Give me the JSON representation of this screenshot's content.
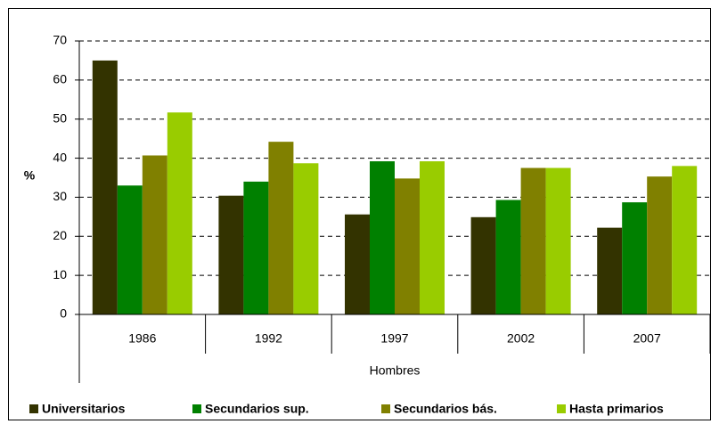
{
  "chart_data": {
    "type": "bar",
    "categories": [
      "1986",
      "1992",
      "1997",
      "2002",
      "2007"
    ],
    "x_label": "Hombres",
    "y_label": "%",
    "series": [
      {
        "name": "Universitarios",
        "color": "#333300",
        "values": [
          65,
          30.4,
          25.6,
          24.9,
          22.2
        ]
      },
      {
        "name": "Secundarios sup.",
        "color": "#008000",
        "values": [
          33,
          34,
          39.2,
          29.3,
          28.7
        ]
      },
      {
        "name": "Secundarios bás.",
        "color": "#808000",
        "values": [
          40.7,
          44.2,
          34.8,
          37.5,
          35.3
        ]
      },
      {
        "name": "Hasta primarios",
        "color": "#99cc00",
        "values": [
          51.7,
          38.7,
          39.2,
          37.5,
          38.0
        ]
      }
    ],
    "ylim": [
      0,
      70
    ],
    "yticks": [
      0,
      10,
      20,
      30,
      40,
      50,
      60,
      70
    ],
    "grid": true,
    "legend": "bottom"
  }
}
